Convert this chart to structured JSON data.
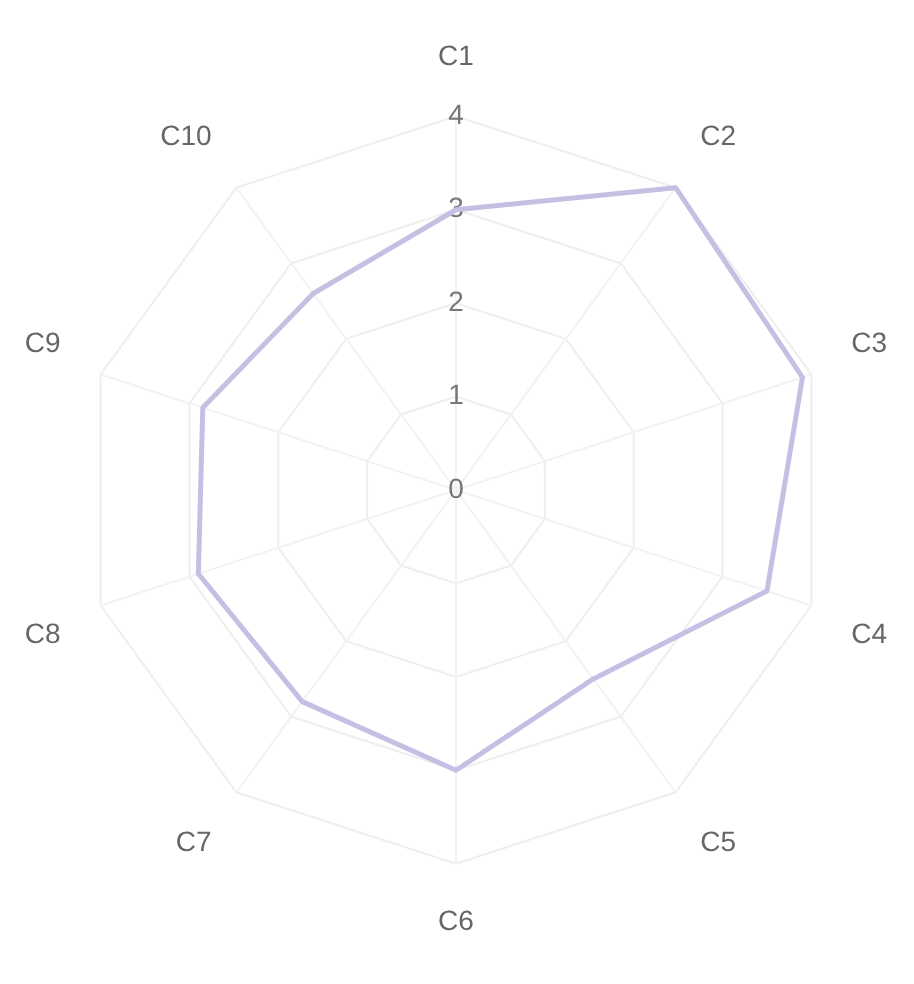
{
  "chart_data": {
    "type": "radar",
    "categories": [
      "C1",
      "C2",
      "C3",
      "C4",
      "C5",
      "C6",
      "C7",
      "C8",
      "C9",
      "C10"
    ],
    "series": [
      {
        "color": "#c4c0e4",
        "values": [
          3.0,
          4.0,
          3.9,
          3.5,
          2.5,
          3.0,
          2.8,
          2.9,
          2.85,
          2.6
        ]
      }
    ],
    "ylim": [
      0,
      4
    ],
    "yticks": [
      0,
      1,
      2,
      3,
      4
    ],
    "grid": true,
    "legend": false,
    "marker": "none",
    "line_style": "solid"
  }
}
